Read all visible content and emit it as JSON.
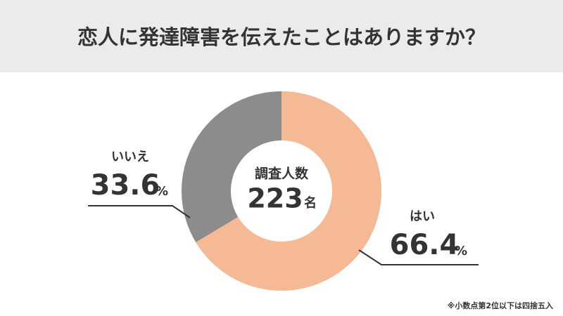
{
  "chart_data": {
    "type": "donut",
    "title": "恋人に発達障害を伝えたことはありますか？",
    "categories": [
      "はい",
      "いいえ"
    ],
    "values": [
      66.4,
      33.6
    ],
    "unit": "%",
    "colors": [
      "#f5b995",
      "#8c8c8c"
    ],
    "center_label": "調査人数",
    "sample_size": 223,
    "sample_unit": "名",
    "note": "※小数点第2位以下は四捨五入"
  }
}
